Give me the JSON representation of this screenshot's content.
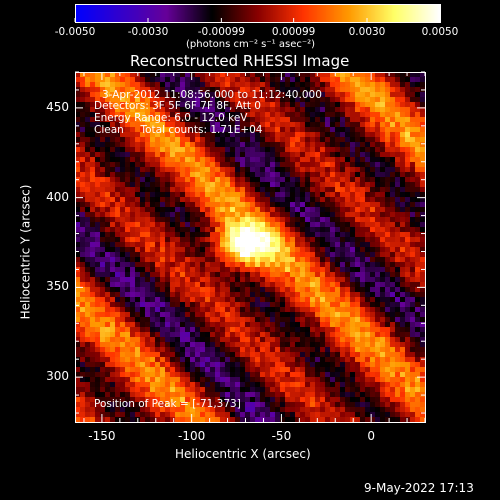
{
  "chart_data": {
    "type": "heatmap",
    "title": "Reconstructed RHESSI Image",
    "xlabel": "Heliocentric X (arcsec)",
    "ylabel": "Heliocentric Y (arcsec)",
    "xlim": [
      -165,
      30
    ],
    "ylim": [
      275,
      470
    ],
    "xticks": [
      "-150",
      "-100",
      "-50",
      "0"
    ],
    "xtick_values": [
      -150,
      -100,
      -50,
      0
    ],
    "yticks": [
      "300",
      "350",
      "400",
      "450"
    ],
    "ytick_values": [
      300,
      350,
      400,
      450
    ],
    "colorbar": {
      "range": [
        -0.005,
        0.005
      ],
      "ticks": [
        "-0.0050",
        "-0.0030",
        "-0.00099",
        "0.00099",
        "0.0030",
        "0.0050"
      ],
      "tick_values": [
        -0.005,
        -0.003,
        -0.00099,
        0.00099,
        0.003,
        0.005
      ],
      "units_text": "(photons cm⁻² s⁻¹ asec⁻²)",
      "colors": [
        "#0000ff",
        "#3300cc",
        "#660099",
        "#000000",
        "#880000",
        "#ff3300",
        "#ff9900",
        "#ffff66",
        "#ffffff"
      ]
    },
    "annotations": {
      "time_range": "3-Apr-2012 11:08:56.000 to 11:12:40.000",
      "detectors": "Detectors: 3F 5F 6F 7F 8F, Att 0",
      "energy": "Energy Range: 6.0 - 12.0 keV",
      "clean": "Clean     Total counts: 1.71E+04",
      "peak": "Position of Peak = [-71,373]"
    },
    "peak_position": [
      -71,
      373
    ],
    "timestamp": "9-May-2022 17:13"
  }
}
